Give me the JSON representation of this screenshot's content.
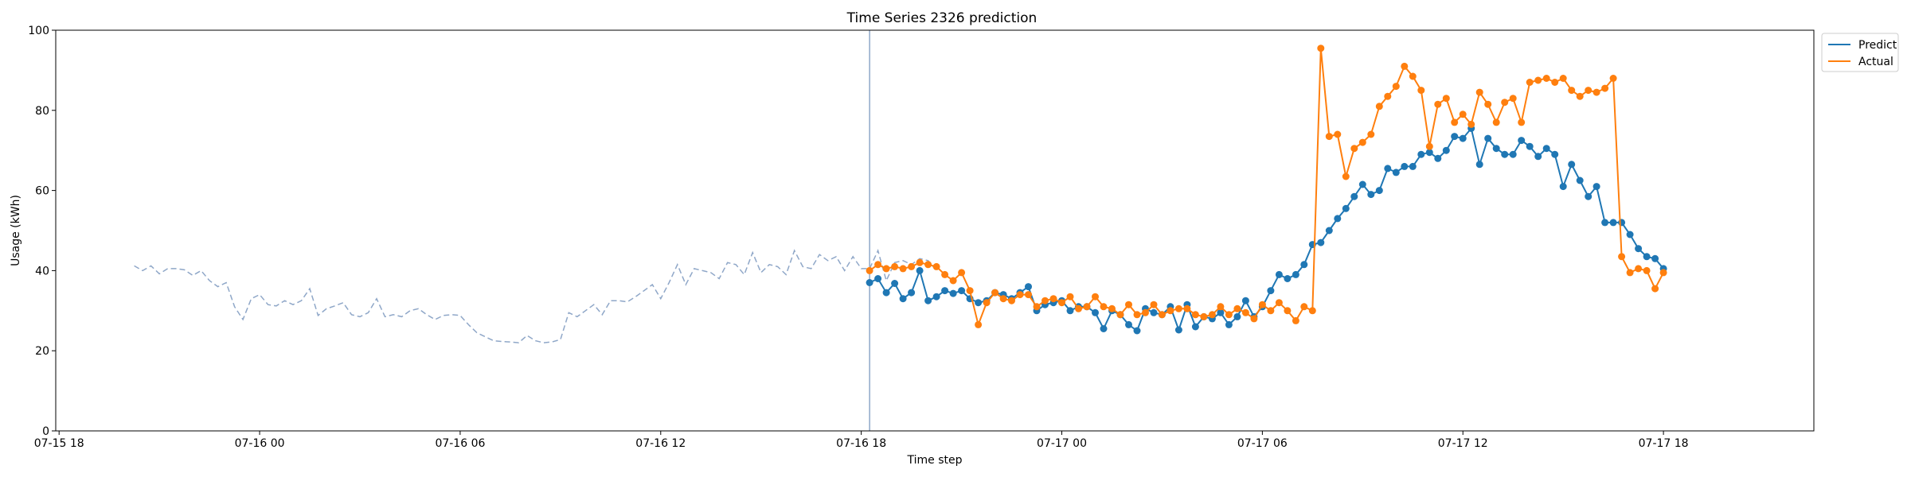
{
  "chart_data": {
    "type": "line",
    "title": "Time Series 2326 prediction",
    "xlabel": "Time step",
    "ylabel": "Usage (kWh)",
    "x_unit": "hour",
    "x_tick_labels": [
      "07-15 18",
      "07-16 00",
      "07-16 06",
      "07-16 12",
      "07-16 18",
      "07-17 00",
      "07-17 06",
      "07-17 12",
      "07-17 18"
    ],
    "x_tick_positions_h": [
      18,
      24,
      30,
      36,
      42,
      48,
      54,
      60,
      66
    ],
    "xlim_h": [
      17.9,
      70.5
    ],
    "y_ticks": [
      0,
      20,
      40,
      60,
      80,
      100
    ],
    "ylim": [
      0,
      100
    ],
    "grid": false,
    "legend": {
      "placement": "upper-right-outside"
    },
    "forecast_start_h": 42.25,
    "colors": {
      "history": "#8fa7c8",
      "predict": "#1f77b4",
      "actual": "#ff7f0e",
      "vline": "#8fa7c8"
    },
    "history": {
      "style": "dashed",
      "x_start_h": 20.25,
      "x_step_h": 0.25,
      "values": [
        41.2,
        40.0,
        41.2,
        39.2,
        40.5,
        40.5,
        40.2,
        38.8,
        40.0,
        37.5,
        36.0,
        37.0,
        31.0,
        27.8,
        33.0,
        34.0,
        31.5,
        31.2,
        32.5,
        31.5,
        32.5,
        35.5,
        28.8,
        30.5,
        31.2,
        32.0,
        29.0,
        28.5,
        29.5,
        33.0,
        28.5,
        29.0,
        28.5,
        30.0,
        30.5,
        29.0,
        27.8,
        28.8,
        29.0,
        28.8,
        26.5,
        24.5,
        23.5,
        22.5,
        22.3,
        22.2,
        22.0,
        23.8,
        22.5,
        22.0,
        22.2,
        22.8,
        29.5,
        28.5,
        30.0,
        31.5,
        29.0,
        32.5,
        32.5,
        32.2,
        33.5,
        35.0,
        36.5,
        33.0,
        37.0,
        41.5,
        36.5,
        40.5,
        40.0,
        39.5,
        38.0,
        42.0,
        41.5,
        39.0,
        44.5,
        39.5,
        41.5,
        41.0,
        39.0,
        45.0,
        41.0,
        40.5,
        44.0,
        42.5,
        43.5,
        40.0,
        43.5,
        40.5,
        40.5,
        45.0,
        37.5,
        42.0,
        42.5,
        41.5,
        43.0,
        42.5,
        40.0
      ]
    },
    "series": [
      {
        "name": "Predict",
        "style": "solid-markers",
        "x_start_h": 42.25,
        "x_step_h": 0.25,
        "values": [
          37.0,
          38.0,
          34.5,
          36.8,
          33.0,
          34.5,
          40.0,
          32.5,
          33.5,
          35.0,
          34.3,
          35.0,
          33.0,
          32.0,
          32.5,
          34.5,
          34.0,
          33.0,
          34.5,
          36.0,
          30.0,
          31.5,
          32.0,
          32.5,
          30.0,
          31.0,
          31.0,
          29.5,
          25.5,
          30.0,
          29.0,
          26.5,
          25.0,
          30.5,
          29.5,
          29.0,
          31.0,
          25.2,
          31.5,
          26.0,
          28.5,
          28.0,
          29.5,
          26.5,
          28.5,
          32.5,
          28.5,
          31.0,
          35.0,
          39.0,
          38.0,
          39.0,
          41.5,
          46.5,
          47.0,
          50.0,
          53.0,
          55.5,
          58.5,
          61.5,
          59.0,
          60.0,
          65.5,
          64.5,
          66.0,
          66.0,
          69.0,
          69.5,
          68.0,
          70.0,
          73.5,
          73.0,
          75.5,
          66.5,
          73.0,
          70.5,
          69.0,
          69.0,
          72.5,
          71.0,
          68.5,
          70.5,
          69.0,
          61.0,
          66.5,
          62.5,
          58.5,
          61.0,
          52.0,
          52.0,
          52.0,
          49.0,
          45.5,
          43.5,
          43.0,
          40.5
        ]
      },
      {
        "name": "Actual",
        "style": "solid-markers",
        "x_start_h": 42.25,
        "x_step_h": 0.25,
        "values": [
          40.0,
          41.5,
          40.5,
          41.0,
          40.5,
          41.0,
          42.0,
          41.5,
          41.0,
          39.0,
          37.5,
          39.5,
          35.0,
          26.5,
          32.0,
          34.5,
          33.0,
          32.5,
          34.0,
          34.0,
          31.0,
          32.5,
          33.0,
          32.0,
          33.5,
          30.5,
          31.0,
          33.5,
          31.0,
          30.5,
          29.0,
          31.5,
          29.0,
          29.5,
          31.5,
          29.0,
          30.0,
          30.5,
          30.5,
          29.0,
          28.5,
          29.0,
          31.0,
          29.0,
          30.5,
          29.5,
          28.0,
          31.5,
          30.0,
          32.0,
          30.0,
          27.5,
          31.0,
          30.0,
          95.5,
          73.5,
          74.0,
          63.5,
          70.5,
          72.0,
          74.0,
          81.0,
          83.5,
          86.0,
          91.0,
          88.5,
          85.0,
          71.0,
          81.5,
          83.0,
          77.0,
          79.0,
          76.5,
          84.5,
          81.5,
          77.0,
          82.0,
          83.0,
          77.0,
          87.0,
          87.5,
          88.0,
          87.0,
          88.0,
          85.0,
          83.5,
          85.0,
          84.5,
          85.5,
          88.0,
          43.5,
          39.5,
          40.5,
          40.0,
          35.5,
          39.5
        ]
      }
    ]
  }
}
